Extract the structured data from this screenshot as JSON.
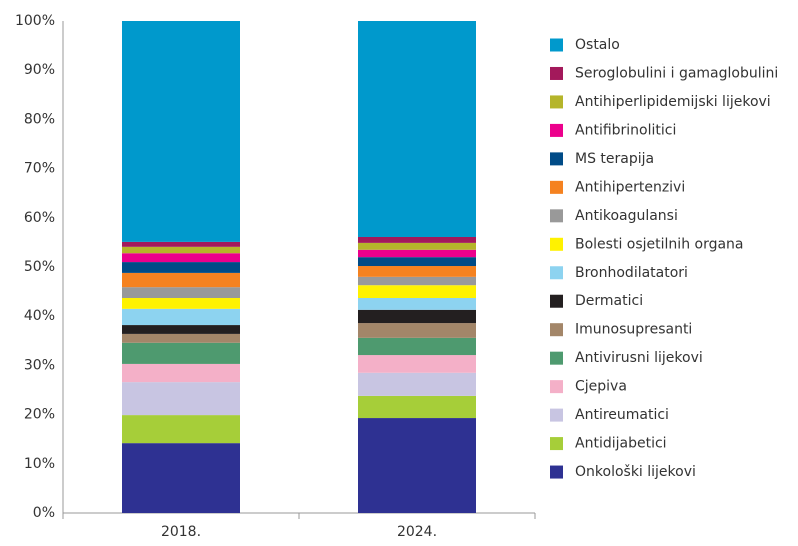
{
  "chart_data": {
    "type": "stacked_bar",
    "categories": [
      "2018.",
      "2024."
    ],
    "ylim": [
      0,
      100
    ],
    "yticks": [
      {
        "value": 0,
        "label": "0%"
      },
      {
        "value": 10,
        "label": "10%"
      },
      {
        "value": 20,
        "label": "20%"
      },
      {
        "value": 30,
        "label": "30%"
      },
      {
        "value": 40,
        "label": "40%"
      },
      {
        "value": 50,
        "label": "50%"
      },
      {
        "value": 60,
        "label": "60%"
      },
      {
        "value": 70,
        "label": "70%"
      },
      {
        "value": 80,
        "label": "80%"
      },
      {
        "value": 90,
        "label": "90%"
      },
      {
        "value": 100,
        "label": "100%"
      }
    ],
    "series": [
      {
        "name": "Onkološki lijekovi",
        "color": "#2e3192",
        "values": [
          14.2,
          19.3
        ]
      },
      {
        "name": "Antidijabetici",
        "color": "#a6ce39",
        "values": [
          5.7,
          4.5
        ]
      },
      {
        "name": "Antireumatici",
        "color": "#c8c5e2",
        "values": [
          6.7,
          4.7
        ]
      },
      {
        "name": "Cjepiva",
        "color": "#f4b0c8",
        "values": [
          3.7,
          3.6
        ]
      },
      {
        "name": "Antivirusni lijekovi",
        "color": "#4e9a6f",
        "values": [
          4.3,
          3.5
        ]
      },
      {
        "name": "Imunosupresanti",
        "color": "#a38669",
        "values": [
          1.8,
          3.0
        ]
      },
      {
        "name": "Dermatici",
        "color": "#231f20",
        "values": [
          1.8,
          2.7
        ]
      },
      {
        "name": "Bronhodilatatori",
        "color": "#8dd3f0",
        "values": [
          3.3,
          2.4
        ]
      },
      {
        "name": "Bolesti osjetilnih organa",
        "color": "#fff200",
        "values": [
          2.2,
          2.6
        ]
      },
      {
        "name": "Antikoagulansi",
        "color": "#999999",
        "values": [
          2.2,
          1.7
        ]
      },
      {
        "name": "Antihipertenzivi",
        "color": "#f58220",
        "values": [
          2.9,
          2.2
        ]
      },
      {
        "name": "MS terapija",
        "color": "#004b87",
        "values": [
          2.2,
          1.8
        ]
      },
      {
        "name": "Antifibrinolitici",
        "color": "#ec008c",
        "values": [
          1.8,
          1.5
        ]
      },
      {
        "name": "Antihiperlipidemijski lijekovi",
        "color": "#b5b52a",
        "values": [
          1.3,
          1.4
        ]
      },
      {
        "name": "Seroglobulini i gamaglobulini",
        "color": "#a3195b",
        "values": [
          1.0,
          1.2
        ]
      },
      {
        "name": "Ostalo",
        "color": "#0099cc",
        "values": [
          44.9,
          43.9
        ]
      }
    ]
  }
}
